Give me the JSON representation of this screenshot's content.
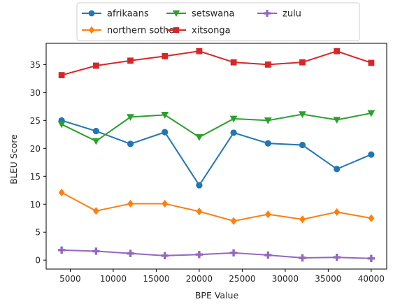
{
  "chart_data": {
    "type": "line",
    "xlabel": "BPE Value",
    "ylabel": "BLEU Score",
    "x": [
      4000,
      8000,
      12000,
      16000,
      20000,
      24000,
      28000,
      32000,
      36000,
      40000
    ],
    "xlim": [
      2200,
      41800
    ],
    "ylim": [
      -1.6,
      38.8
    ],
    "xticks": [
      5000,
      10000,
      15000,
      20000,
      25000,
      30000,
      35000,
      40000
    ],
    "yticks": [
      0,
      5,
      10,
      15,
      20,
      25,
      30,
      35
    ],
    "grid": false,
    "legend_position": "top-center, outside plot",
    "legend_columns": 3,
    "series": [
      {
        "name": "afrikaans",
        "color": "#1f77b4",
        "marker": "circle",
        "values": [
          25.0,
          23.1,
          20.8,
          22.9,
          13.4,
          22.8,
          20.9,
          20.6,
          16.3,
          18.9
        ]
      },
      {
        "name": "northern sotho",
        "color": "#ff7f0e",
        "marker": "diamond",
        "values": [
          12.1,
          8.8,
          10.1,
          10.1,
          8.7,
          7.0,
          8.2,
          7.3,
          8.6,
          7.5
        ]
      },
      {
        "name": "setswana",
        "color": "#2ca02c",
        "marker": "triangle-down",
        "values": [
          24.3,
          21.3,
          25.6,
          26.0,
          22.0,
          25.3,
          25.0,
          26.1,
          25.1,
          26.3
        ]
      },
      {
        "name": "xitsonga",
        "color": "#d62728",
        "marker": "square",
        "values": [
          33.1,
          34.8,
          35.7,
          36.5,
          37.4,
          35.4,
          35.0,
          35.4,
          37.4,
          35.3
        ]
      },
      {
        "name": "zulu",
        "color": "#9467bd",
        "marker": "plus",
        "values": [
          1.8,
          1.6,
          1.2,
          0.8,
          1.0,
          1.3,
          0.9,
          0.4,
          0.5,
          0.3
        ]
      }
    ]
  }
}
